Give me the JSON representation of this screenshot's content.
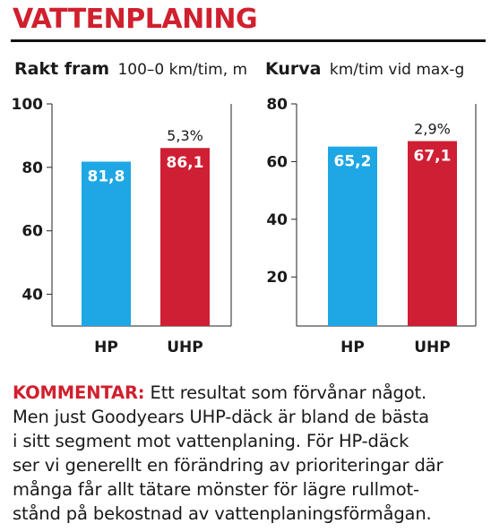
{
  "heading": "VATTENPLANING",
  "colors": {
    "hp": "#1ea7e4",
    "uhp": "#cf1f34",
    "accent": "#d0202e"
  },
  "chart_data": [
    {
      "type": "bar",
      "title": "Rakt fram",
      "subtitle": "100–0 km/tim, m",
      "categories": [
        "HP",
        "UHP"
      ],
      "values": [
        81.8,
        86.1
      ],
      "value_labels": [
        "81,8",
        "86,1"
      ],
      "yticks": [
        40,
        60,
        80,
        100
      ],
      "ylim": [
        30,
        100
      ],
      "annotation": {
        "category": "UHP",
        "text": "5,3%"
      }
    },
    {
      "type": "bar",
      "title": "Kurva",
      "subtitle": "km/tim vid max-g",
      "categories": [
        "HP",
        "UHP"
      ],
      "values": [
        65.2,
        67.1
      ],
      "value_labels": [
        "65,2",
        "67,1"
      ],
      "yticks": [
        20,
        40,
        60,
        80
      ],
      "ylim": [
        3,
        80
      ],
      "annotation": {
        "category": "UHP",
        "text": "2,9%"
      }
    }
  ],
  "comment": {
    "lead": "KOMMENTAR:",
    "lines": [
      " Ett resultat som förvånar något.",
      "Men just Goodyears UHP-däck är bland de bästa",
      "i sitt segment mot vattenplaning. För HP-däck",
      "ser vi generellt en förändring av prioriteringar där",
      "många får allt tätare mönster för lägre rullmot-",
      "stånd på bekostnad av vattenplaningsförmågan."
    ]
  }
}
